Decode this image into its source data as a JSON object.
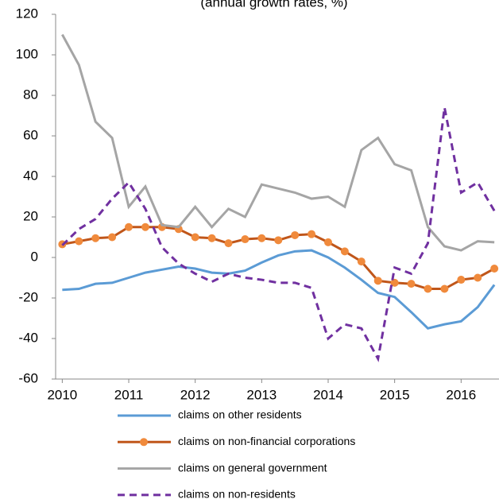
{
  "chart_data": {
    "type": "line",
    "title": "(annual growth rates, %)",
    "x": [
      2010,
      2010.25,
      2010.5,
      2010.75,
      2011,
      2011.25,
      2011.5,
      2011.75,
      2012,
      2012.25,
      2012.5,
      2012.75,
      2013,
      2013.25,
      2013.5,
      2013.75,
      2014,
      2014.25,
      2014.5,
      2014.75,
      2015,
      2015.25,
      2015.5,
      2015.75,
      2016,
      2016.25,
      2016.5
    ],
    "xlim": [
      2009.9,
      2016.57
    ],
    "xticks": [
      2010,
      2011,
      2012,
      2013,
      2014,
      2015,
      2016
    ],
    "ylim": [
      -60,
      120
    ],
    "yticks": [
      -60,
      -40,
      -20,
      0,
      20,
      40,
      60,
      80,
      100,
      120
    ],
    "grid": false,
    "legend": "bottom",
    "series": [
      {
        "name": "claims on other residents",
        "color": "#5b9bd5",
        "dash": false,
        "marker": false,
        "values": [
          -16,
          -15.5,
          -13,
          -12.5,
          -10,
          -7.5,
          -6,
          -4.5,
          -5.5,
          -7.5,
          -8,
          -6.5,
          -2.5,
          1,
          3,
          3.5,
          0,
          -5,
          -11,
          -17.5,
          -19.5,
          -27,
          -35,
          -33,
          -31.5,
          -24.5,
          -13.5
        ]
      },
      {
        "name": "claims on non-financial corporations",
        "color": "#c0561a",
        "marker_color": "#f08a3c",
        "dash": false,
        "marker": true,
        "values": [
          6.5,
          8,
          9.5,
          10,
          15,
          15,
          15,
          14,
          10,
          9.5,
          7,
          9,
          9.5,
          8.5,
          11,
          11.5,
          7.5,
          3,
          -2,
          -11.5,
          -12.5,
          -13,
          -15.5,
          -15.5,
          -11,
          -10,
          -5.5
        ]
      },
      {
        "name": "claims on general government",
        "color": "#a5a5a5",
        "dash": false,
        "marker": false,
        "values": [
          110,
          95,
          67,
          59,
          25,
          35,
          16,
          15,
          25,
          15,
          24,
          20,
          36,
          34,
          32,
          29,
          30,
          25,
          53,
          59,
          46,
          43,
          15,
          5.5,
          3.5,
          8,
          7.5
        ]
      },
      {
        "name": "claims on non-residents",
        "color": "#7030a0",
        "dash": true,
        "marker": false,
        "values": [
          6,
          14,
          19,
          29,
          37,
          24,
          5,
          -3,
          -8,
          -12,
          -8,
          -10,
          -11,
          -12.5,
          -12.5,
          -15,
          -40,
          -33,
          -35,
          -50,
          -5,
          -8,
          7,
          74,
          32,
          37,
          23
        ]
      }
    ]
  }
}
